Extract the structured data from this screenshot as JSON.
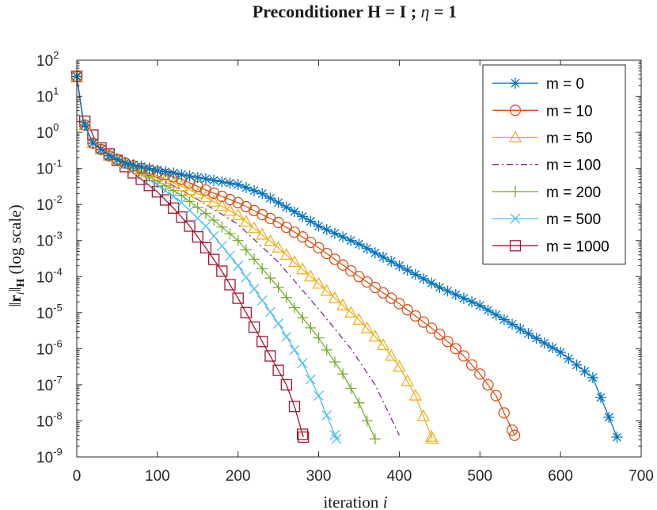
{
  "chart_data": {
    "type": "line",
    "title": "Preconditioner H = I ; η = 1",
    "title_parts": {
      "prefix": "Preconditioner ",
      "H": "H",
      "eq1": " = ",
      "I": "I",
      "sep": " ; ",
      "eta": "η",
      "eq2": " = 1"
    },
    "xlabel": "iteration i",
    "xlabel_parts": {
      "text": "iteration ",
      "var": "i"
    },
    "ylabel": "‖r_i‖_H (log scale)",
    "ylabel_parts": {
      "bar1": "‖",
      "r": "r",
      "sub_i": "i",
      "bar2": "‖",
      "H": "H",
      "suffix": " (log scale)"
    },
    "xscale": "linear",
    "yscale": "log",
    "xlim": [
      0,
      700
    ],
    "ylim_exp": [
      -9,
      2
    ],
    "xticks": [
      "0",
      "100",
      "200",
      "300",
      "400",
      "500",
      "600",
      "700"
    ],
    "yticks": [
      {
        "base": "10",
        "exp": "2"
      },
      {
        "base": "10",
        "exp": "1"
      },
      {
        "base": "10",
        "exp": "0"
      },
      {
        "base": "10",
        "exp": "-1"
      },
      {
        "base": "10",
        "exp": "-2"
      },
      {
        "base": "10",
        "exp": "-3"
      },
      {
        "base": "10",
        "exp": "-4"
      },
      {
        "base": "10",
        "exp": "-5"
      },
      {
        "base": "10",
        "exp": "-6"
      },
      {
        "base": "10",
        "exp": "-7"
      },
      {
        "base": "10",
        "exp": "-8"
      },
      {
        "base": "10",
        "exp": "-9"
      }
    ],
    "legend_position": "top-right",
    "series": [
      {
        "name": "m = 0",
        "color": "#0072BD",
        "marker": "asterisk",
        "line": "solid",
        "marker_step": 10,
        "end": 670,
        "knots": [
          [
            0,
            1.55
          ],
          [
            8,
            0.3
          ],
          [
            20,
            -0.3
          ],
          [
            40,
            -0.65
          ],
          [
            60,
            -0.85
          ],
          [
            100,
            -1.05
          ],
          [
            150,
            -1.25
          ],
          [
            200,
            -1.45
          ],
          [
            230,
            -1.7
          ],
          [
            270,
            -2.2
          ],
          [
            300,
            -2.6
          ],
          [
            350,
            -3.1
          ],
          [
            400,
            -3.7
          ],
          [
            450,
            -4.3
          ],
          [
            500,
            -4.8
          ],
          [
            550,
            -5.45
          ],
          [
            600,
            -6.1
          ],
          [
            640,
            -6.8
          ],
          [
            670,
            -8.45
          ]
        ]
      },
      {
        "name": "m = 10",
        "color": "#D95319",
        "marker": "circle",
        "line": "solid",
        "marker_step": 10,
        "end": 543,
        "knots": [
          [
            0,
            1.55
          ],
          [
            8,
            0.3
          ],
          [
            20,
            -0.3
          ],
          [
            40,
            -0.65
          ],
          [
            60,
            -0.85
          ],
          [
            80,
            -1.0
          ],
          [
            100,
            -1.1
          ],
          [
            130,
            -1.3
          ],
          [
            160,
            -1.6
          ],
          [
            200,
            -1.95
          ],
          [
            250,
            -2.5
          ],
          [
            280,
            -2.9
          ],
          [
            300,
            -3.2
          ],
          [
            350,
            -4.0
          ],
          [
            400,
            -4.75
          ],
          [
            450,
            -5.6
          ],
          [
            480,
            -6.2
          ],
          [
            500,
            -6.7
          ],
          [
            520,
            -7.3
          ],
          [
            543,
            -8.4
          ]
        ]
      },
      {
        "name": "m = 50",
        "color": "#EDB120",
        "marker": "triangle",
        "line": "solid",
        "marker_step": 10,
        "end": 441,
        "knots": [
          [
            0,
            1.55
          ],
          [
            8,
            0.3
          ],
          [
            20,
            -0.3
          ],
          [
            40,
            -0.65
          ],
          [
            60,
            -0.85
          ],
          [
            80,
            -1.05
          ],
          [
            100,
            -1.2
          ],
          [
            130,
            -1.5
          ],
          [
            160,
            -1.8
          ],
          [
            200,
            -2.3
          ],
          [
            250,
            -3.2
          ],
          [
            300,
            -4.2
          ],
          [
            350,
            -5.2
          ],
          [
            380,
            -5.9
          ],
          [
            400,
            -6.5
          ],
          [
            420,
            -7.3
          ],
          [
            441,
            -8.5
          ]
        ]
      },
      {
        "name": "m = 100",
        "color": "#7E2F8E",
        "marker": "none",
        "line": "dashdot",
        "marker_step": 10,
        "end": 400,
        "knots": [
          [
            0,
            1.55
          ],
          [
            8,
            0.3
          ],
          [
            20,
            -0.3
          ],
          [
            40,
            -0.65
          ],
          [
            60,
            -0.85
          ],
          [
            80,
            -1.05
          ],
          [
            100,
            -1.25
          ],
          [
            130,
            -1.6
          ],
          [
            160,
            -2.0
          ],
          [
            200,
            -2.55
          ],
          [
            250,
            -3.6
          ],
          [
            300,
            -4.9
          ],
          [
            340,
            -6.0
          ],
          [
            370,
            -7.0
          ],
          [
            400,
            -8.4
          ]
        ]
      },
      {
        "name": "m = 200",
        "color": "#77AC30",
        "marker": "plus",
        "line": "solid",
        "marker_step": 10,
        "end": 370,
        "knots": [
          [
            0,
            1.55
          ],
          [
            8,
            0.3
          ],
          [
            20,
            -0.3
          ],
          [
            40,
            -0.65
          ],
          [
            60,
            -0.85
          ],
          [
            80,
            -1.1
          ],
          [
            100,
            -1.35
          ],
          [
            130,
            -1.75
          ],
          [
            160,
            -2.25
          ],
          [
            200,
            -3.0
          ],
          [
            250,
            -4.3
          ],
          [
            300,
            -5.7
          ],
          [
            330,
            -6.7
          ],
          [
            350,
            -7.5
          ],
          [
            370,
            -8.5
          ]
        ]
      },
      {
        "name": "m = 500",
        "color": "#4DBEEE",
        "marker": "x",
        "line": "solid",
        "marker_step": 10,
        "end": 322,
        "knots": [
          [
            0,
            1.55
          ],
          [
            8,
            0.3
          ],
          [
            20,
            -0.3
          ],
          [
            40,
            -0.65
          ],
          [
            60,
            -0.9
          ],
          [
            80,
            -1.15
          ],
          [
            100,
            -1.45
          ],
          [
            130,
            -1.95
          ],
          [
            160,
            -2.6
          ],
          [
            200,
            -3.7
          ],
          [
            250,
            -5.3
          ],
          [
            280,
            -6.4
          ],
          [
            300,
            -7.3
          ],
          [
            322,
            -8.5
          ]
        ]
      },
      {
        "name": "m = 1000",
        "color": "#A2142F",
        "marker": "square",
        "line": "solid",
        "marker_step": 10,
        "end": 281,
        "knots": [
          [
            0,
            1.55
          ],
          [
            8,
            0.35
          ],
          [
            15,
            0.2
          ],
          [
            25,
            -0.35
          ],
          [
            40,
            -0.6
          ],
          [
            60,
            -0.95
          ],
          [
            80,
            -1.3
          ],
          [
            100,
            -1.65
          ],
          [
            120,
            -2.1
          ],
          [
            140,
            -2.6
          ],
          [
            160,
            -3.2
          ],
          [
            180,
            -3.85
          ],
          [
            200,
            -4.6
          ],
          [
            220,
            -5.4
          ],
          [
            240,
            -6.2
          ],
          [
            260,
            -7.0
          ],
          [
            270,
            -7.6
          ],
          [
            281,
            -8.45
          ]
        ]
      }
    ]
  }
}
